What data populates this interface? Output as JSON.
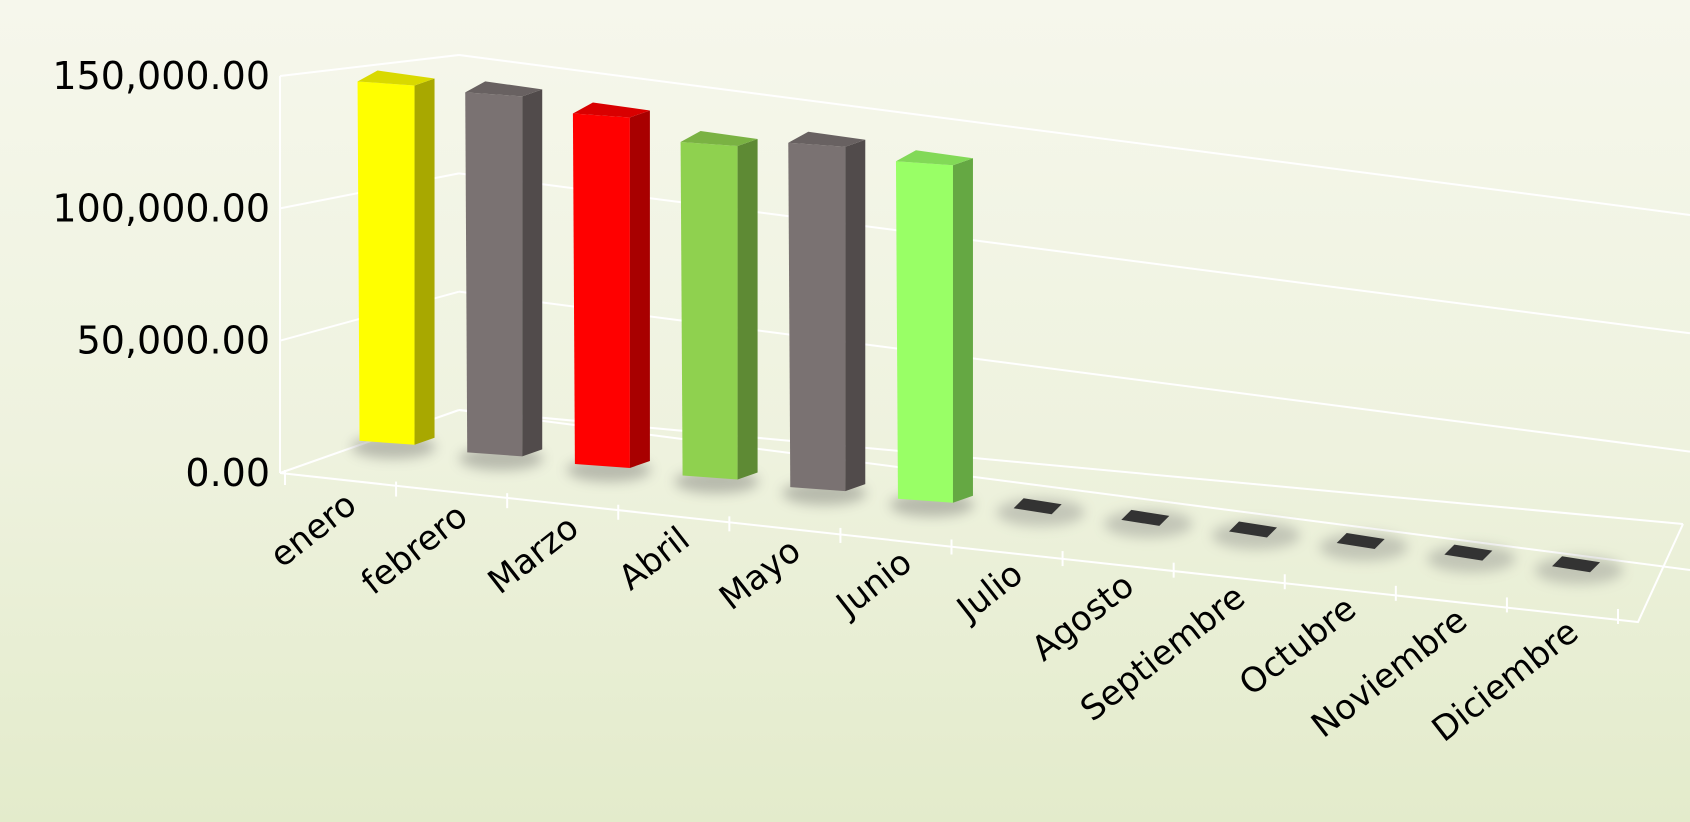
{
  "chart_data": {
    "type": "bar",
    "title": "",
    "xlabel": "",
    "ylabel": "",
    "ylim": [
      0,
      150000
    ],
    "yticks": [
      0,
      50000,
      100000,
      150000
    ],
    "ytick_labels": [
      "0.00",
      "50,000.00",
      "100,000.00",
      "150,000.00"
    ],
    "categories": [
      "enero",
      "febrero",
      "Marzo",
      "Abril",
      "Mayo",
      "Junio",
      "Julio",
      "Agosto",
      "Septiembre",
      "Octubre",
      "Noviembre",
      "Diciembre"
    ],
    "values": [
      140000,
      141000,
      138000,
      132000,
      137000,
      135000,
      0,
      0,
      0,
      0,
      0,
      0
    ],
    "colors": [
      "#ffff00",
      "#7a7272",
      "#ff0000",
      "#8fd14f",
      "#7a7272",
      "#99ff66",
      "#333333",
      "#333333",
      "#333333",
      "#333333",
      "#333333",
      "#333333"
    ],
    "style": "3d-column",
    "grid": true,
    "legend": "none"
  }
}
